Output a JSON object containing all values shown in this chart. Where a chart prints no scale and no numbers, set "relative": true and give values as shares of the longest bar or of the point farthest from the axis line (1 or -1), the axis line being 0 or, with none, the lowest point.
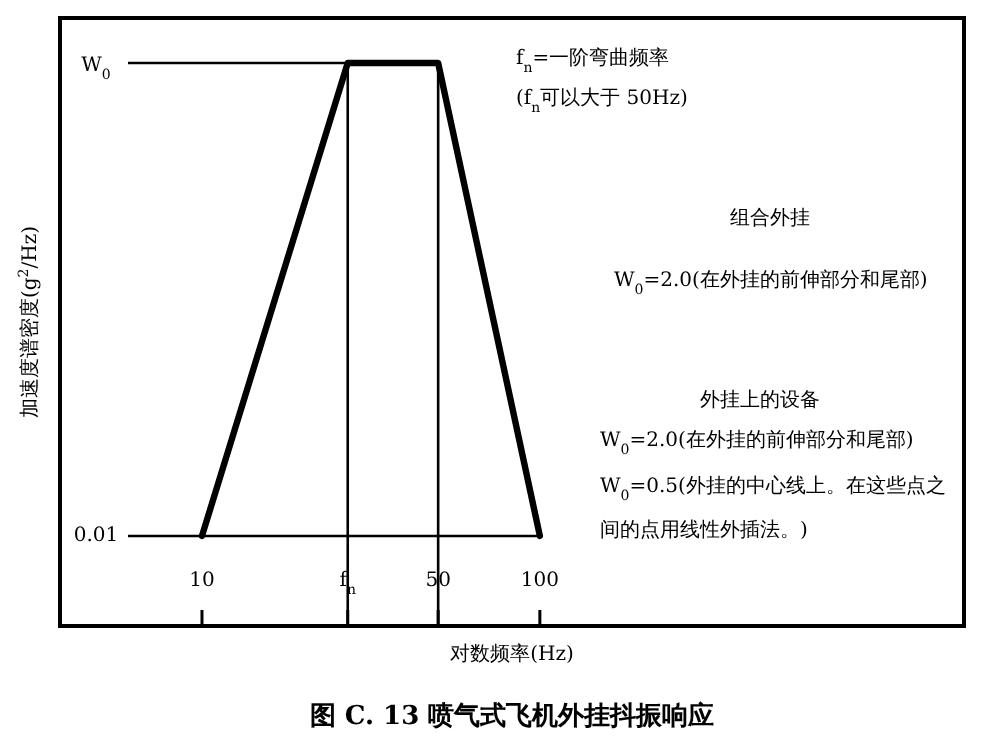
{
  "chart_data": {
    "type": "line",
    "title": "图 C. 13 喷气式飞机外挂抖振响应",
    "xlabel": "对数频率(Hz)",
    "ylabel": "加速度谱密度(g$^{2}$/Hz)",
    "x": [
      10,
      27,
      50,
      100
    ],
    "values": [
      0.16,
      1,
      1,
      0.16
    ],
    "relative": true,
    "color": "#000000",
    "log": "x",
    "xlim": [
      3.8,
      1800
    ],
    "xticks": [
      10,
      {
        "value": 27,
        "label": "f$_{n}$"
      },
      50,
      100
    ],
    "ref_lines": [
      {
        "axis": "x",
        "value": 27,
        "color": "#000000",
        "line_style": "solid"
      },
      {
        "axis": "x",
        "value": 50,
        "color": "#000000",
        "line_style": "solid"
      },
      {
        "axis": "y",
        "value": 0.16,
        "color": "#000000",
        "line_style": "solid"
      },
      {
        "axis": "y",
        "value": 1,
        "color": "#000000",
        "line_style": "solid"
      }
    ],
    "annotations": [
      "W$_{0}$",
      "0.01",
      "f$_{n}$=一阶弯曲频率",
      "(f$_{n}$可以大于 50Hz)",
      "组合外挂",
      "W$_{0}$=2.0(在外挂的前伸部分和尾部)",
      "外挂上的设备",
      "W$_{0}$=2.0(在外挂的前伸部分和尾部)",
      "W$_{0}$=0.5(外挂的中心线上。在这些点之间的点用线性外插法。)"
    ],
    "legend": false,
    "grid": false,
    "marker": "none",
    "line_style": "solid"
  }
}
